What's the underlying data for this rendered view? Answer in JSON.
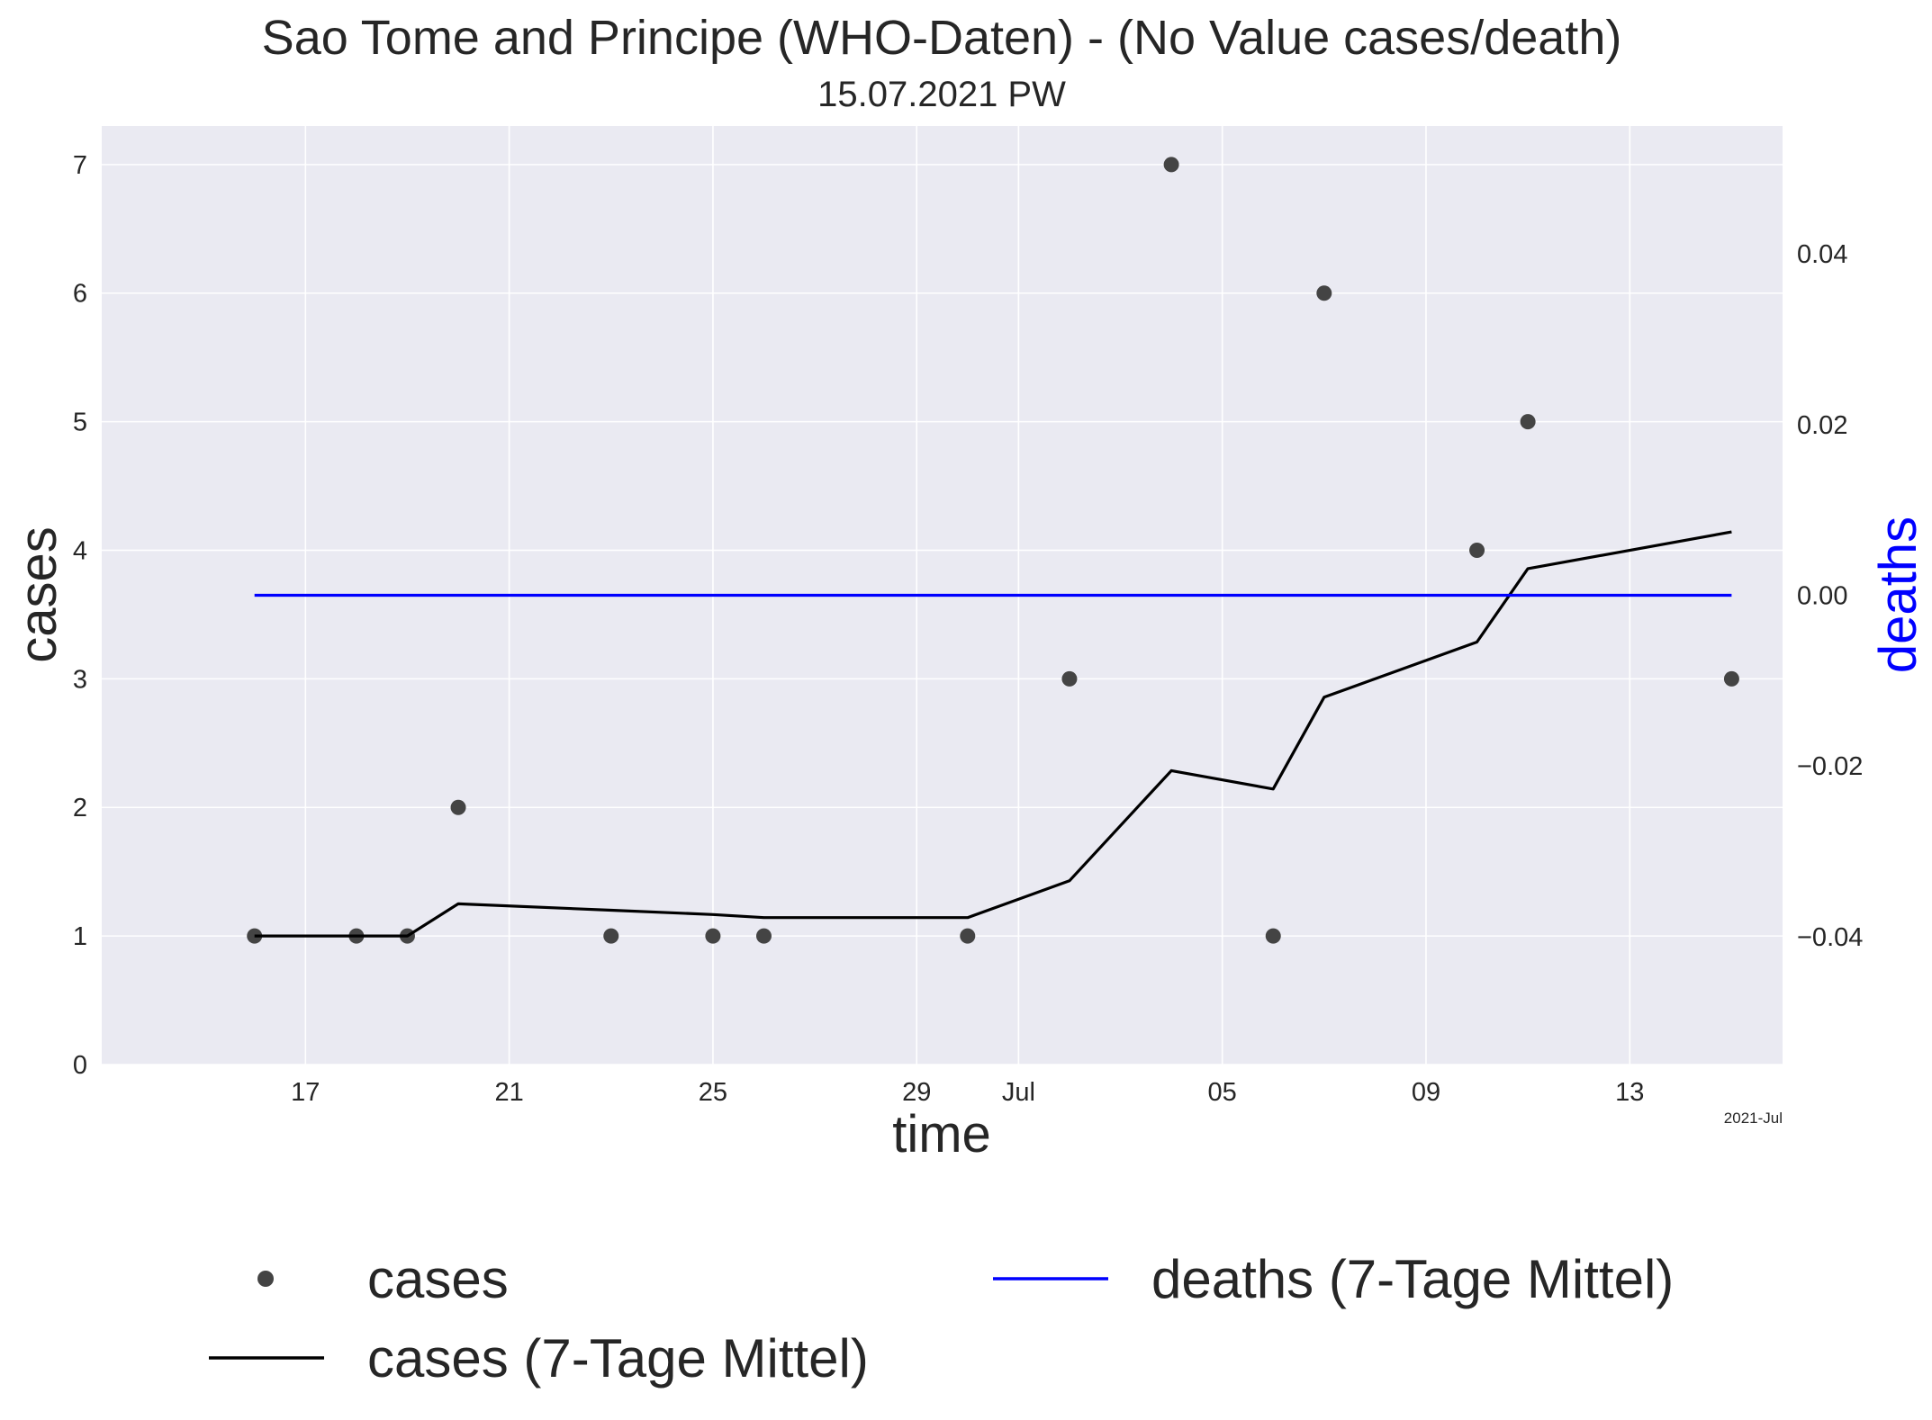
{
  "chart_data": {
    "type": "scatter",
    "title": "Sao Tome and Principe (WHO-Daten) - (No Value cases/death)",
    "subtitle": "15.07.2021 PW",
    "xlabel": "time",
    "ylabel": "cases",
    "ylabel_right": "deaths",
    "x_offset_label": "2021-Jul",
    "xlim": [
      "2021-06-13",
      "2021-07-16"
    ],
    "ylim": [
      0,
      7.3
    ],
    "ylim_right": [
      -0.055,
      0.055
    ],
    "grid": true,
    "x_ticks": [
      {
        "date": "2021-06-17",
        "label": "17"
      },
      {
        "date": "2021-06-21",
        "label": "21"
      },
      {
        "date": "2021-06-25",
        "label": "25"
      },
      {
        "date": "2021-06-29",
        "label": "29"
      },
      {
        "date": "2021-07-01",
        "label": "Jul"
      },
      {
        "date": "2021-07-05",
        "label": "05"
      },
      {
        "date": "2021-07-09",
        "label": "09"
      },
      {
        "date": "2021-07-13",
        "label": "13"
      }
    ],
    "y_ticks": [
      "0",
      "1",
      "2",
      "3",
      "4",
      "5",
      "6",
      "7"
    ],
    "y_ticks_right": [
      {
        "value": -0.04,
        "label": "−0.04"
      },
      {
        "value": -0.02,
        "label": "−0.02"
      },
      {
        "value": 0.0,
        "label": "0.00"
      },
      {
        "value": 0.02,
        "label": "0.02"
      },
      {
        "value": 0.04,
        "label": "0.04"
      }
    ],
    "series": [
      {
        "name": "cases",
        "kind": "scatter",
        "axis": "left",
        "color": "#444444",
        "x": [
          "2021-06-16",
          "2021-06-18",
          "2021-06-19",
          "2021-06-20",
          "2021-06-23",
          "2021-06-25",
          "2021-06-26",
          "2021-06-30",
          "2021-07-02",
          "2021-07-04",
          "2021-07-06",
          "2021-07-07",
          "2021-07-10",
          "2021-07-11",
          "2021-07-15"
        ],
        "y": [
          1,
          1,
          1,
          2,
          1,
          1,
          1,
          1,
          3,
          7,
          1,
          6,
          4,
          5,
          3
        ]
      },
      {
        "name": "cases (7-Tage Mittel)",
        "kind": "line",
        "axis": "left",
        "color": "#000000",
        "x": [
          "2021-06-16",
          "2021-06-18",
          "2021-06-19",
          "2021-06-20",
          "2021-06-23",
          "2021-06-25",
          "2021-06-26",
          "2021-06-30",
          "2021-07-02",
          "2021-07-04",
          "2021-07-06",
          "2021-07-07",
          "2021-07-10",
          "2021-07-11",
          "2021-07-15"
        ],
        "y": [
          1.0,
          1.0,
          1.0,
          1.25,
          1.2,
          1.167,
          1.143,
          1.143,
          1.429,
          2.286,
          2.143,
          2.857,
          3.286,
          3.857,
          4.143
        ]
      },
      {
        "name": "deaths (7-Tage Mittel)",
        "kind": "line",
        "axis": "right",
        "color": "#0000ff",
        "x": [
          "2021-06-16",
          "2021-07-15"
        ],
        "y": [
          0.0,
          0.0
        ]
      }
    ],
    "legend": {
      "placement": "bottom",
      "entries": [
        "cases",
        "cases (7-Tage Mittel)",
        "deaths (7-Tage Mittel)"
      ]
    },
    "colors": {
      "plot_background": "#eaeaf2",
      "grid": "#ffffff",
      "right_axis_label": "#0000ff"
    }
  }
}
